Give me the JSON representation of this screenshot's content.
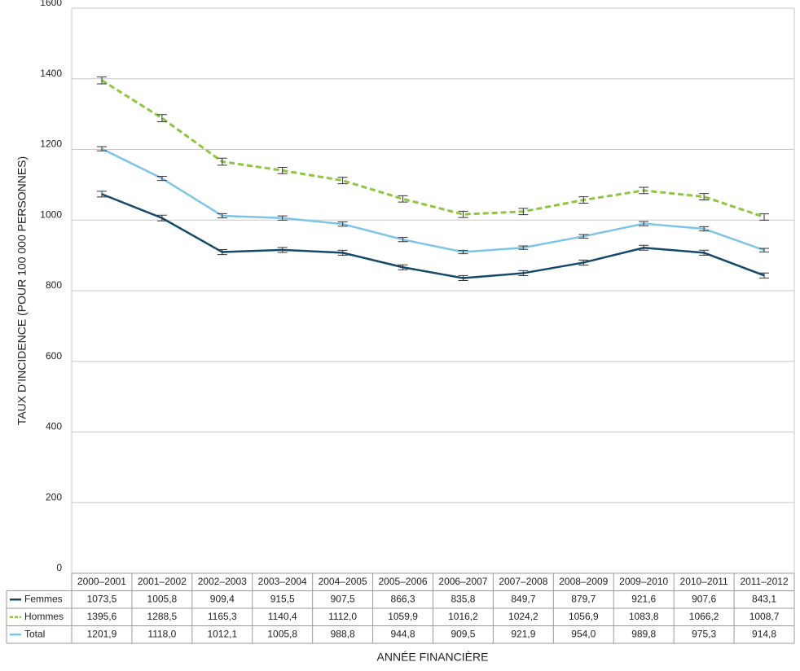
{
  "chart_data": {
    "type": "line",
    "y_label": "TAUX D’INCIDENCE (POUR 100 000 PERSONNES)",
    "x_label": "ANNÉE FINANCIÈRE",
    "categories": [
      "2000–2001",
      "2001–2002",
      "2002–2003",
      "2003–2004",
      "2004–2005",
      "2005–2006",
      "2006–2007",
      "2007–2008",
      "2008–2009",
      "2009–2010",
      "2010–2011",
      "2011–2012"
    ],
    "ylim": [
      0,
      1600
    ],
    "yticks": [
      0,
      200,
      400,
      600,
      800,
      1000,
      1200,
      1400,
      1600
    ],
    "grid": true,
    "series": [
      {
        "name": "Femmes",
        "color": "#134a6b",
        "line_style": "solid",
        "values": [
          1073.5,
          1005.8,
          909.4,
          915.5,
          907.5,
          866.3,
          835.8,
          849.7,
          879.7,
          921.6,
          907.6,
          843.1
        ],
        "value_labels": [
          "1073,5",
          "1005,8",
          "909,4",
          "915,5",
          "907,5",
          "866,3",
          "835,8",
          "849,7",
          "879,7",
          "921,6",
          "907,6",
          "843,1"
        ],
        "errors": [
          8,
          8,
          7,
          7,
          7,
          7,
          7,
          7,
          7,
          7,
          7,
          7
        ]
      },
      {
        "name": "Hommes",
        "color": "#8dc63f",
        "line_style": "dashed",
        "values": [
          1395.6,
          1288.5,
          1165.3,
          1140.4,
          1112.0,
          1059.9,
          1016.2,
          1024.2,
          1056.9,
          1083.8,
          1066.2,
          1008.7
        ],
        "value_labels": [
          "1395,6",
          "1288,5",
          "1165,3",
          "1140,4",
          "1112,0",
          "1059,9",
          "1016,2",
          "1024,2",
          "1056,9",
          "1083,8",
          "1066,2",
          "1008,7"
        ],
        "errors": [
          10,
          10,
          10,
          9,
          9,
          9,
          9,
          9,
          9,
          9,
          9,
          9
        ]
      },
      {
        "name": "Total",
        "color": "#7cc5e8",
        "line_style": "solid",
        "values": [
          1201.9,
          1118.0,
          1012.1,
          1005.8,
          988.8,
          944.8,
          909.5,
          921.9,
          954.0,
          989.8,
          975.3,
          914.8
        ],
        "value_labels": [
          "1201,9",
          "1118,0",
          "1012,1",
          "1005,8",
          "988,8",
          "944,8",
          "909,5",
          "921,9",
          "954,0",
          "989,8",
          "975,3",
          "914,8"
        ],
        "errors": [
          6,
          6,
          6,
          6,
          6,
          6,
          5,
          5,
          5,
          6,
          6,
          5
        ]
      }
    ]
  }
}
